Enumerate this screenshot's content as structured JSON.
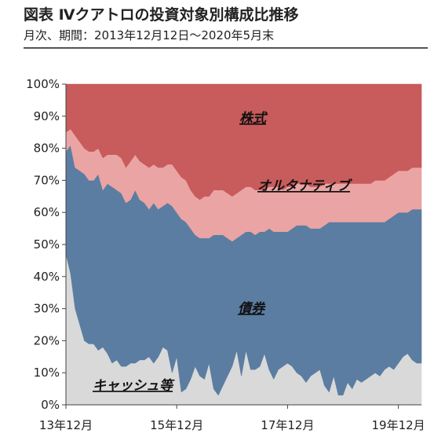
{
  "header": {
    "title": "図表 Ⅳクアトロの投資対象別構成比推移",
    "subtitle": "月次、期間：2013年12月12日～2020年5月末"
  },
  "chart_data": {
    "type": "area",
    "stacked": true,
    "percent": true,
    "x": [
      "2013-12",
      "2014-01",
      "2014-02",
      "2014-03",
      "2014-04",
      "2014-05",
      "2014-06",
      "2014-07",
      "2014-08",
      "2014-09",
      "2014-10",
      "2014-11",
      "2014-12",
      "2015-01",
      "2015-02",
      "2015-03",
      "2015-04",
      "2015-05",
      "2015-06",
      "2015-07",
      "2015-08",
      "2015-09",
      "2015-10",
      "2015-11",
      "2015-12",
      "2016-01",
      "2016-02",
      "2016-03",
      "2016-04",
      "2016-05",
      "2016-06",
      "2016-07",
      "2016-08",
      "2016-09",
      "2016-10",
      "2016-11",
      "2016-12",
      "2017-01",
      "2017-02",
      "2017-03",
      "2017-04",
      "2017-05",
      "2017-06",
      "2017-07",
      "2017-08",
      "2017-09",
      "2017-10",
      "2017-11",
      "2017-12",
      "2018-01",
      "2018-02",
      "2018-03",
      "2018-04",
      "2018-05",
      "2018-06",
      "2018-07",
      "2018-08",
      "2018-09",
      "2018-10",
      "2018-11",
      "2018-12",
      "2019-01",
      "2019-02",
      "2019-03",
      "2019-04",
      "2019-05",
      "2019-06",
      "2019-07",
      "2019-08",
      "2019-09",
      "2019-10",
      "2019-11",
      "2019-12",
      "2020-01",
      "2020-02",
      "2020-03",
      "2020-04",
      "2020-05"
    ],
    "x_tick_labels": [
      "13年12月",
      "15年12月",
      "17年12月",
      "19年12月"
    ],
    "x_tick_positions": [
      "2013-12",
      "2015-12",
      "2017-12",
      "2019-12"
    ],
    "y_ticks": [
      "0%",
      "10%",
      "20%",
      "30%",
      "40%",
      "50%",
      "60%",
      "70%",
      "80%",
      "90%",
      "100%"
    ],
    "ylim": [
      0,
      100
    ],
    "annotations": [
      "キャッシュ等",
      "債券",
      "オルタナティブ",
      "株式"
    ],
    "series": [
      {
        "name": "キャッシュ等",
        "color": "#d9d9d9",
        "values": [
          47,
          41,
          30,
          25,
          20,
          19,
          19,
          17,
          18,
          16,
          13,
          14,
          12,
          12,
          13,
          13,
          14,
          14,
          15,
          13,
          15,
          18,
          17,
          10,
          15,
          4,
          5,
          8,
          12,
          9,
          8,
          13,
          5,
          3,
          6,
          9,
          12,
          17,
          9,
          17,
          11,
          11,
          12,
          16,
          11,
          8,
          11,
          12,
          13,
          12,
          10,
          9,
          7,
          9,
          10,
          11,
          6,
          4,
          9,
          3,
          3,
          7,
          5,
          8,
          7,
          8,
          9,
          10,
          9,
          11,
          12,
          11,
          13,
          15,
          16,
          14,
          13,
          13
        ]
      },
      {
        "name": "債券",
        "color": "#5b7da2",
        "values": [
          32,
          40,
          44,
          48,
          52,
          51,
          51,
          55,
          49,
          53,
          55,
          53,
          54,
          51,
          51,
          54,
          50,
          49,
          46,
          50,
          46,
          44,
          46,
          52,
          45,
          54,
          52,
          47,
          41,
          43,
          44,
          39,
          48,
          50,
          47,
          43,
          39,
          35,
          44,
          37,
          43,
          42,
          42,
          38,
          44,
          46,
          43,
          42,
          41,
          43,
          46,
          47,
          49,
          46,
          45,
          44,
          50,
          53,
          48,
          54,
          54,
          50,
          52,
          49,
          50,
          49,
          48,
          47,
          48,
          46,
          46,
          48,
          47,
          45,
          44,
          47,
          48,
          48
        ]
      },
      {
        "name": "オルタナティブ",
        "color": "#eaa4a4",
        "values": [
          6,
          5,
          10,
          9,
          8,
          9,
          9,
          8,
          10,
          9,
          10,
          11,
          11,
          11,
          12,
          11,
          12,
          12,
          13,
          12,
          13,
          12,
          12,
          13,
          13,
          13,
          13,
          12,
          12,
          12,
          13,
          13,
          14,
          14,
          14,
          14,
          14,
          14,
          14,
          14,
          14,
          14,
          13,
          13,
          13,
          14,
          14,
          13,
          14,
          13,
          13,
          13,
          13,
          13,
          13,
          13,
          13,
          12,
          12,
          12,
          12,
          12,
          12,
          12,
          12,
          12,
          12,
          13,
          13,
          13,
          13,
          13,
          13,
          13,
          13,
          13,
          13,
          13
        ]
      },
      {
        "name": "株式",
        "color": "#c85b5b",
        "values": [
          15,
          14,
          16,
          18,
          20,
          21,
          21,
          20,
          23,
          22,
          22,
          22,
          23,
          26,
          24,
          22,
          24,
          25,
          26,
          25,
          26,
          26,
          25,
          25,
          27,
          29,
          30,
          33,
          35,
          36,
          35,
          35,
          33,
          33,
          33,
          34,
          35,
          34,
          33,
          32,
          32,
          33,
          33,
          33,
          32,
          32,
          32,
          33,
          32,
          32,
          31,
          31,
          31,
          32,
          32,
          32,
          31,
          31,
          31,
          31,
          31,
          31,
          31,
          31,
          31,
          31,
          31,
          30,
          30,
          30,
          29,
          28,
          27,
          27,
          27,
          26,
          26,
          26
        ]
      }
    ]
  }
}
